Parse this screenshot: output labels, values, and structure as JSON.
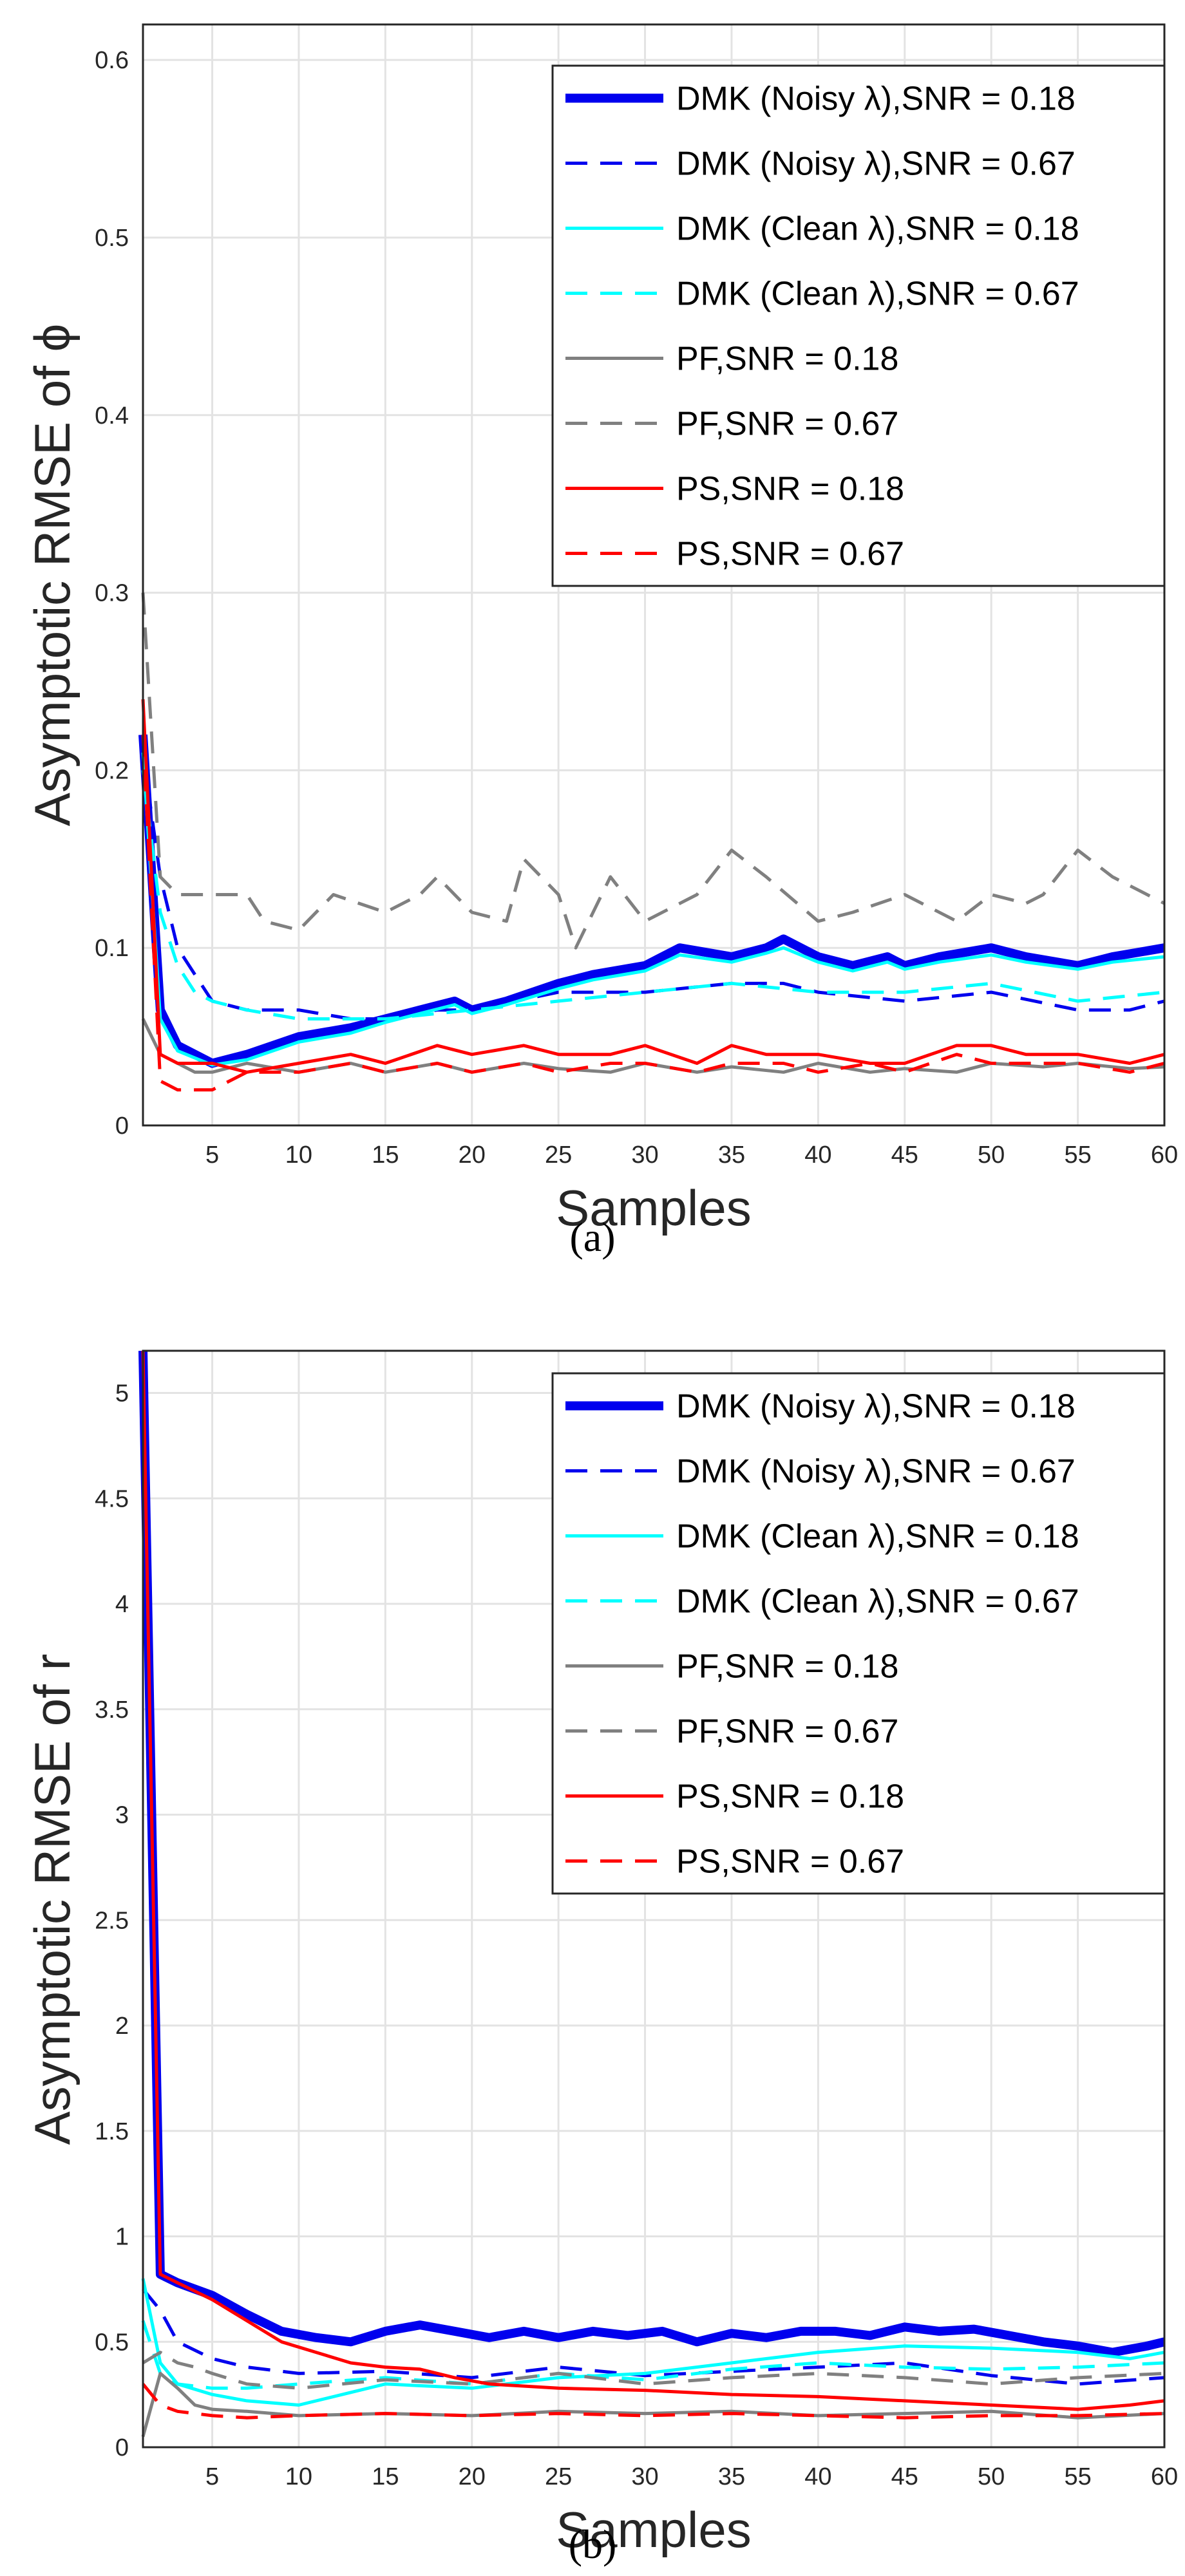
{
  "chart_data": [
    {
      "type": "line",
      "caption": "(a)",
      "xlabel": "Samples",
      "ylabel": "Asymptotic RMSE of ϕ",
      "xlim": [
        1,
        60
      ],
      "ylim": [
        0,
        0.62
      ],
      "xticks": [
        "5",
        "10",
        "15",
        "20",
        "25",
        "30",
        "35",
        "40",
        "45",
        "50",
        "55",
        "60"
      ],
      "yticks": [
        "0",
        "0.1",
        "0.2",
        "0.3",
        "0.4",
        "0.5",
        "0.6"
      ],
      "grid": true,
      "legend_position": "top-right",
      "series": [
        {
          "name": "DMK (Noisy λ),SNR = 0.18",
          "color": "#0000ee",
          "dash": "solid",
          "width": "thick",
          "x": [
            1,
            2,
            3,
            5,
            7,
            10,
            13,
            15,
            17,
            19,
            20,
            22,
            25,
            27,
            30,
            32,
            35,
            37,
            38,
            40,
            42,
            44,
            45,
            47,
            50,
            52,
            55,
            57,
            60
          ],
          "y": [
            0.22,
            0.065,
            0.045,
            0.035,
            0.04,
            0.05,
            0.055,
            0.06,
            0.065,
            0.07,
            0.065,
            0.07,
            0.08,
            0.085,
            0.09,
            0.1,
            0.095,
            0.1,
            0.105,
            0.095,
            0.09,
            0.095,
            0.09,
            0.095,
            0.1,
            0.095,
            0.09,
            0.095,
            0.1
          ]
        },
        {
          "name": "DMK (Noisy λ),SNR = 0.67",
          "color": "#0000ee",
          "dash": "dashed",
          "width": "thin",
          "x": [
            1,
            2,
            3,
            4,
            5,
            7,
            10,
            13,
            15,
            18,
            20,
            25,
            30,
            35,
            38,
            40,
            45,
            50,
            55,
            58,
            60
          ],
          "y": [
            0.21,
            0.14,
            0.1,
            0.085,
            0.07,
            0.065,
            0.065,
            0.06,
            0.06,
            0.065,
            0.065,
            0.075,
            0.075,
            0.08,
            0.08,
            0.075,
            0.07,
            0.075,
            0.065,
            0.065,
            0.07
          ]
        },
        {
          "name": "DMK (Clean λ),SNR = 0.18",
          "color": "#00ffff",
          "dash": "solid",
          "width": "thin",
          "x": [
            1,
            2,
            3,
            5,
            7,
            10,
            13,
            15,
            17,
            19,
            20,
            22,
            25,
            27,
            30,
            32,
            35,
            37,
            38,
            40,
            42,
            44,
            45,
            47,
            50,
            52,
            55,
            57,
            60
          ],
          "y": [
            0.21,
            0.06,
            0.042,
            0.034,
            0.037,
            0.047,
            0.052,
            0.058,
            0.063,
            0.068,
            0.063,
            0.068,
            0.077,
            0.082,
            0.087,
            0.096,
            0.092,
            0.097,
            0.1,
            0.092,
            0.087,
            0.092,
            0.088,
            0.092,
            0.096,
            0.092,
            0.088,
            0.092,
            0.095
          ]
        },
        {
          "name": "DMK (Clean λ),SNR = 0.67",
          "color": "#00ffff",
          "dash": "dashed",
          "width": "thin",
          "x": [
            1,
            2,
            3,
            4,
            5,
            7,
            10,
            15,
            20,
            25,
            30,
            35,
            40,
            45,
            50,
            55,
            60
          ],
          "y": [
            0.2,
            0.12,
            0.09,
            0.075,
            0.07,
            0.065,
            0.06,
            0.06,
            0.065,
            0.07,
            0.075,
            0.08,
            0.075,
            0.075,
            0.08,
            0.07,
            0.075
          ]
        },
        {
          "name": "PF,SNR = 0.18",
          "color": "#808080",
          "dash": "solid",
          "width": "thin",
          "x": [
            1,
            2,
            3,
            4,
            5,
            7,
            10,
            13,
            15,
            18,
            20,
            23,
            25,
            28,
            30,
            33,
            35,
            38,
            40,
            43,
            45,
            48,
            50,
            53,
            55,
            58,
            60
          ],
          "y": [
            0.06,
            0.04,
            0.035,
            0.03,
            0.03,
            0.035,
            0.03,
            0.035,
            0.03,
            0.035,
            0.03,
            0.035,
            0.032,
            0.03,
            0.035,
            0.03,
            0.033,
            0.03,
            0.035,
            0.03,
            0.032,
            0.03,
            0.035,
            0.033,
            0.035,
            0.032,
            0.033
          ]
        },
        {
          "name": "PF,SNR = 0.67",
          "color": "#808080",
          "dash": "dashed",
          "width": "thin",
          "x": [
            1,
            2,
            3,
            5,
            7,
            8,
            10,
            12,
            15,
            17,
            18,
            20,
            22,
            23,
            25,
            26,
            28,
            30,
            33,
            35,
            37,
            40,
            42,
            45,
            48,
            50,
            52,
            53,
            55,
            57,
            60
          ],
          "y": [
            0.3,
            0.14,
            0.13,
            0.13,
            0.13,
            0.115,
            0.11,
            0.13,
            0.12,
            0.13,
            0.14,
            0.12,
            0.115,
            0.15,
            0.13,
            0.1,
            0.14,
            0.115,
            0.13,
            0.155,
            0.14,
            0.115,
            0.12,
            0.13,
            0.115,
            0.13,
            0.125,
            0.13,
            0.155,
            0.14,
            0.125
          ]
        },
        {
          "name": "PS,SNR = 0.18",
          "color": "#ff0000",
          "dash": "solid",
          "width": "thin",
          "x": [
            1,
            2,
            3,
            5,
            7,
            10,
            13,
            15,
            18,
            20,
            23,
            25,
            28,
            30,
            33,
            35,
            37,
            40,
            43,
            45,
            48,
            50,
            52,
            55,
            58,
            60
          ],
          "y": [
            0.24,
            0.04,
            0.035,
            0.035,
            0.03,
            0.035,
            0.04,
            0.035,
            0.045,
            0.04,
            0.045,
            0.04,
            0.04,
            0.045,
            0.035,
            0.045,
            0.04,
            0.04,
            0.035,
            0.035,
            0.045,
            0.045,
            0.04,
            0.04,
            0.035,
            0.04
          ]
        },
        {
          "name": "PS,SNR = 0.67",
          "color": "#ff0000",
          "dash": "dashed",
          "width": "thin",
          "x": [
            1,
            2,
            3,
            5,
            7,
            10,
            13,
            15,
            18,
            20,
            23,
            25,
            28,
            30,
            33,
            35,
            38,
            40,
            43,
            45,
            48,
            50,
            53,
            55,
            58,
            60
          ],
          "y": [
            0.22,
            0.025,
            0.02,
            0.02,
            0.03,
            0.03,
            0.035,
            0.03,
            0.035,
            0.03,
            0.035,
            0.03,
            0.035,
            0.035,
            0.03,
            0.035,
            0.035,
            0.03,
            0.035,
            0.03,
            0.04,
            0.035,
            0.035,
            0.035,
            0.03,
            0.035
          ]
        }
      ]
    },
    {
      "type": "line",
      "caption": "(b)",
      "xlabel": "Samples",
      "ylabel": "Asymptotic RMSE of r",
      "xlim": [
        1,
        60
      ],
      "ylim": [
        0,
        5.2
      ],
      "xticks": [
        "5",
        "10",
        "15",
        "20",
        "25",
        "30",
        "35",
        "40",
        "45",
        "50",
        "55",
        "60"
      ],
      "yticks": [
        "0",
        "0.5",
        "1",
        "1.5",
        "2",
        "2.5",
        "3",
        "3.5",
        "4",
        "4.5",
        "5"
      ],
      "grid": true,
      "legend_position": "top-right",
      "series": [
        {
          "name": "DMK (Noisy λ),SNR = 0.18",
          "color": "#0000ee",
          "dash": "solid",
          "width": "thick",
          "x": [
            1,
            2,
            3,
            5,
            7,
            9,
            11,
            13,
            15,
            17,
            19,
            21,
            23,
            25,
            27,
            29,
            31,
            33,
            35,
            37,
            39,
            41,
            43,
            45,
            47,
            49,
            51,
            53,
            55,
            57,
            59,
            60
          ],
          "y": [
            5.2,
            0.82,
            0.78,
            0.72,
            0.63,
            0.55,
            0.52,
            0.5,
            0.55,
            0.58,
            0.55,
            0.52,
            0.55,
            0.52,
            0.55,
            0.53,
            0.55,
            0.5,
            0.54,
            0.52,
            0.55,
            0.55,
            0.53,
            0.57,
            0.55,
            0.56,
            0.53,
            0.5,
            0.48,
            0.45,
            0.48,
            0.5
          ]
        },
        {
          "name": "DMK (Noisy λ),SNR = 0.67",
          "color": "#0000ee",
          "dash": "dashed",
          "width": "thin",
          "x": [
            1,
            2,
            3,
            5,
            7,
            10,
            15,
            20,
            25,
            30,
            35,
            40,
            45,
            50,
            55,
            60
          ],
          "y": [
            0.75,
            0.65,
            0.5,
            0.42,
            0.38,
            0.35,
            0.36,
            0.33,
            0.38,
            0.34,
            0.36,
            0.38,
            0.4,
            0.34,
            0.3,
            0.33
          ]
        },
        {
          "name": "DMK (Clean λ),SNR = 0.18",
          "color": "#00ffff",
          "dash": "solid",
          "width": "thin",
          "x": [
            1,
            2,
            3,
            5,
            7,
            10,
            15,
            20,
            25,
            30,
            35,
            40,
            45,
            50,
            55,
            58,
            60
          ],
          "y": [
            0.8,
            0.4,
            0.3,
            0.25,
            0.22,
            0.2,
            0.3,
            0.28,
            0.33,
            0.35,
            0.4,
            0.45,
            0.48,
            0.47,
            0.45,
            0.42,
            0.45
          ]
        },
        {
          "name": "DMK (Clean λ),SNR = 0.67",
          "color": "#00ffff",
          "dash": "dashed",
          "width": "thin",
          "x": [
            1,
            2,
            3,
            5,
            7,
            10,
            15,
            20,
            25,
            30,
            35,
            40,
            45,
            50,
            55,
            60
          ],
          "y": [
            0.6,
            0.35,
            0.3,
            0.28,
            0.28,
            0.3,
            0.33,
            0.3,
            0.35,
            0.32,
            0.37,
            0.4,
            0.38,
            0.37,
            0.38,
            0.4
          ]
        },
        {
          "name": "PF,SNR = 0.18",
          "color": "#808080",
          "dash": "solid",
          "width": "thin",
          "x": [
            1,
            2,
            3,
            4,
            5,
            7,
            10,
            15,
            20,
            25,
            30,
            35,
            40,
            45,
            50,
            55,
            60
          ],
          "y": [
            0.05,
            0.35,
            0.28,
            0.2,
            0.18,
            0.17,
            0.15,
            0.16,
            0.15,
            0.17,
            0.16,
            0.17,
            0.15,
            0.16,
            0.17,
            0.14,
            0.16
          ]
        },
        {
          "name": "PF,SNR = 0.67",
          "color": "#808080",
          "dash": "dashed",
          "width": "thin",
          "x": [
            1,
            2,
            3,
            4,
            5,
            7,
            10,
            15,
            20,
            25,
            30,
            35,
            40,
            45,
            50,
            55,
            60
          ],
          "y": [
            0.4,
            0.45,
            0.4,
            0.38,
            0.35,
            0.3,
            0.28,
            0.32,
            0.3,
            0.35,
            0.3,
            0.33,
            0.35,
            0.33,
            0.3,
            0.33,
            0.35
          ]
        },
        {
          "name": "PS,SNR = 0.18",
          "color": "#ff0000",
          "dash": "solid",
          "width": "thin",
          "x": [
            1,
            2,
            3,
            5,
            7,
            9,
            11,
            13,
            15,
            17,
            19,
            21,
            25,
            30,
            35,
            40,
            45,
            50,
            55,
            58,
            60
          ],
          "y": [
            5.2,
            0.82,
            0.78,
            0.7,
            0.6,
            0.5,
            0.45,
            0.4,
            0.38,
            0.37,
            0.33,
            0.3,
            0.28,
            0.27,
            0.25,
            0.24,
            0.22,
            0.2,
            0.18,
            0.2,
            0.22
          ]
        },
        {
          "name": "PS,SNR = 0.67",
          "color": "#ff0000",
          "dash": "dashed",
          "width": "thin",
          "x": [
            1,
            2,
            3,
            5,
            7,
            10,
            15,
            20,
            25,
            30,
            35,
            40,
            45,
            50,
            55,
            60
          ],
          "y": [
            0.3,
            0.2,
            0.17,
            0.15,
            0.14,
            0.15,
            0.16,
            0.15,
            0.16,
            0.15,
            0.16,
            0.15,
            0.14,
            0.15,
            0.15,
            0.16
          ]
        }
      ]
    }
  ]
}
